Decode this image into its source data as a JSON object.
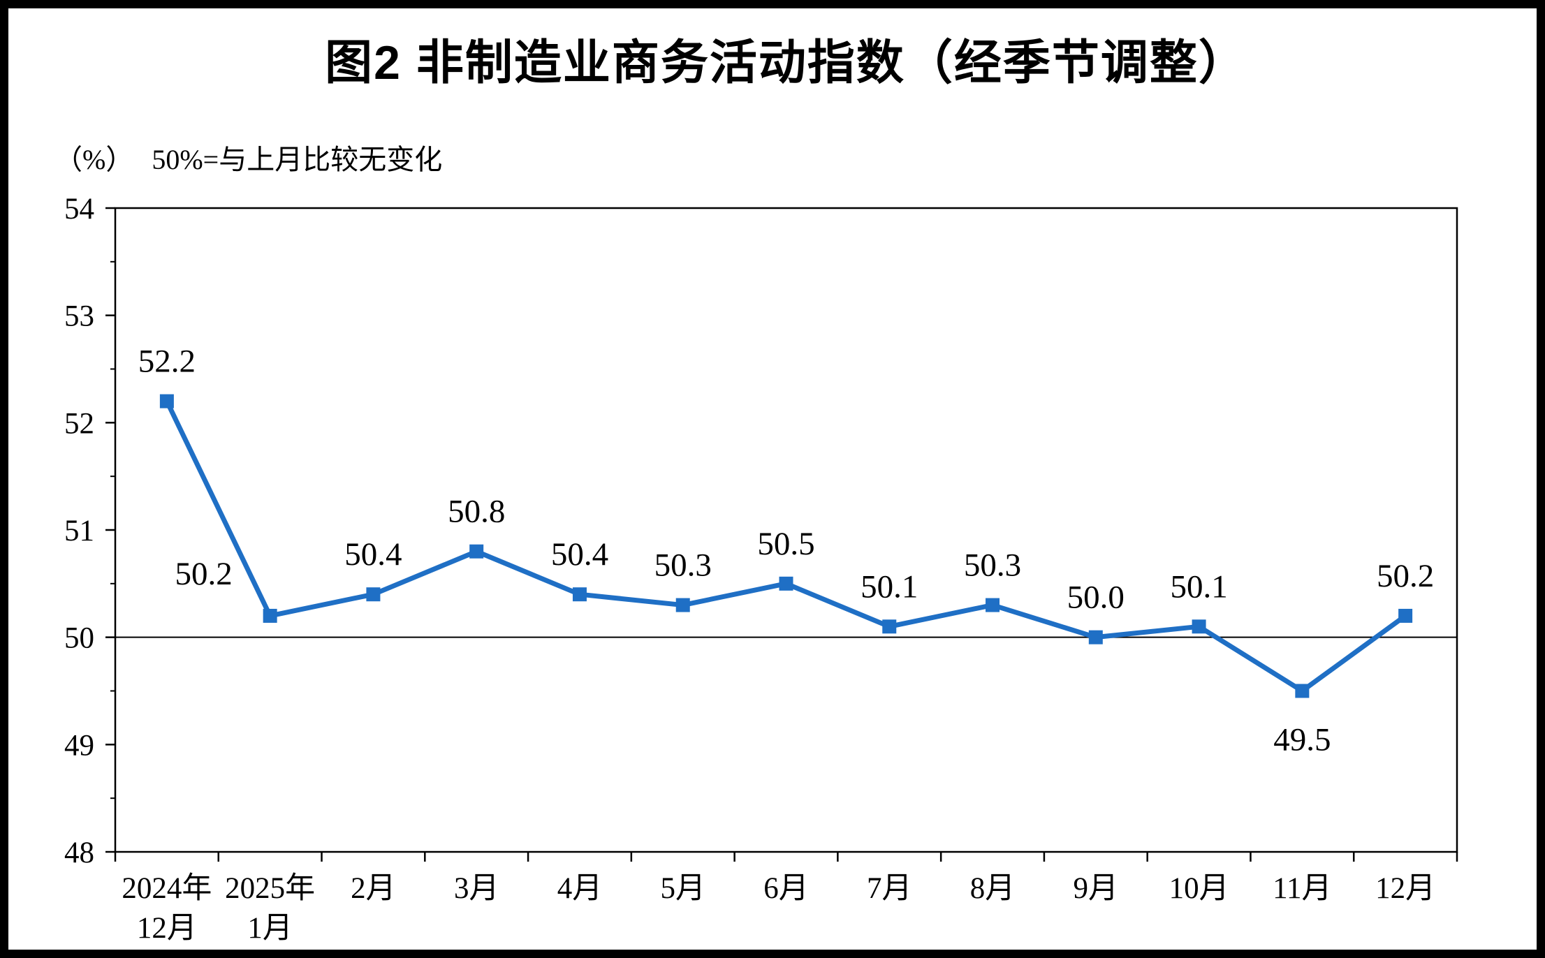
{
  "chart_data": {
    "type": "line",
    "title": "图2 非制造业商务活动指数（经季节调整）",
    "unit": "（%）",
    "note": "50%=与上月比较无变化",
    "categories": [
      [
        "2024年",
        "12月"
      ],
      [
        "2025年",
        "1月"
      ],
      [
        "2月"
      ],
      [
        "3月"
      ],
      [
        "4月"
      ],
      [
        "5月"
      ],
      [
        "6月"
      ],
      [
        "7月"
      ],
      [
        "8月"
      ],
      [
        "9月"
      ],
      [
        "10月"
      ],
      [
        "11月"
      ],
      [
        "12月"
      ]
    ],
    "values": [
      52.2,
      50.2,
      50.4,
      50.8,
      50.4,
      50.3,
      50.5,
      50.1,
      50.3,
      50.0,
      50.1,
      49.5,
      50.2
    ],
    "data_labels": [
      "52.2",
      "50.2",
      "50.4",
      "50.8",
      "50.4",
      "50.3",
      "50.5",
      "50.1",
      "50.3",
      "50.0",
      "50.1",
      "49.5",
      "50.2"
    ],
    "label_positions": [
      "above",
      "above-left",
      "above",
      "above",
      "above",
      "above",
      "above",
      "above",
      "above",
      "above",
      "above",
      "below",
      "above"
    ],
    "ylim": [
      48,
      54
    ],
    "ytick_step": 1,
    "ytick_labels": [
      "48",
      "49",
      "50",
      "51",
      "52",
      "53",
      "54"
    ],
    "reference_line": 50,
    "line_color": "#1F6FC5",
    "marker": "square",
    "axis_color": "#000000",
    "grid": false,
    "legend": "none"
  }
}
